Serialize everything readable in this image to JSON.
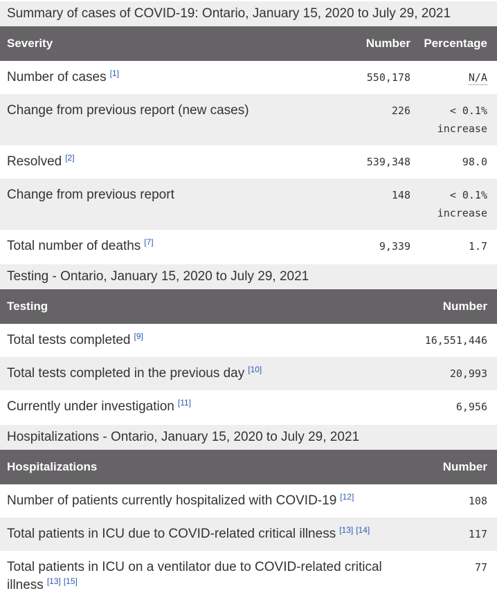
{
  "colors": {
    "header_bg": "#656365",
    "stripe_bg": "#eeeeee",
    "caption_bg": "#eeeeee",
    "link": "#275bb5",
    "text": "#333333",
    "header_text": "#ffffff"
  },
  "sections": [
    {
      "caption": "Summary of cases of COVID-19: Ontario, January 15, 2020 to July 29, 2021",
      "columns": [
        "Severity",
        "Number",
        "Percentage"
      ],
      "rows": [
        {
          "label": "Number of cases",
          "refs": [
            "[1]"
          ],
          "number": "550,178",
          "percentage": "N/A",
          "percentage_abbr": true
        },
        {
          "label": "Change from previous report (new cases)",
          "refs": [],
          "number": "226",
          "percentage": "< 0.1% increase"
        },
        {
          "label": "Resolved",
          "refs": [
            "[2]"
          ],
          "number": "539,348",
          "percentage": "98.0"
        },
        {
          "label": "Change from previous report",
          "refs": [],
          "number": "148",
          "percentage": "< 0.1% increase"
        },
        {
          "label": "Total number of deaths",
          "refs": [
            "[7]"
          ],
          "number": "9,339",
          "percentage": "1.7"
        }
      ]
    },
    {
      "caption": "Testing - Ontario, January 15, 2020 to July 29, 2021",
      "columns": [
        "Testing",
        "Number"
      ],
      "rows": [
        {
          "label": "Total tests completed",
          "refs": [
            "[9]"
          ],
          "number": "16,551,446"
        },
        {
          "label": "Total tests completed in the previous day",
          "refs": [
            "[10]"
          ],
          "number": "20,993"
        },
        {
          "label": "Currently under investigation",
          "refs": [
            "[11]"
          ],
          "number": "6,956"
        }
      ]
    },
    {
      "caption": "Hospitalizations - Ontario, January 15, 2020 to July 29, 2021",
      "columns": [
        "Hospitalizations",
        "Number"
      ],
      "rows": [
        {
          "label": "Number of patients currently hospitalized with COVID-19",
          "refs": [
            "[12]"
          ],
          "number": "108"
        },
        {
          "label": "Total patients in ICU due to COVID-related critical illness",
          "refs": [
            "[13]",
            "[14]"
          ],
          "number": "117"
        },
        {
          "label": "Total patients in ICU on a ventilator due to COVID-related critical illness",
          "refs": [
            "[13]",
            "[15]"
          ],
          "number": "77"
        }
      ]
    }
  ]
}
